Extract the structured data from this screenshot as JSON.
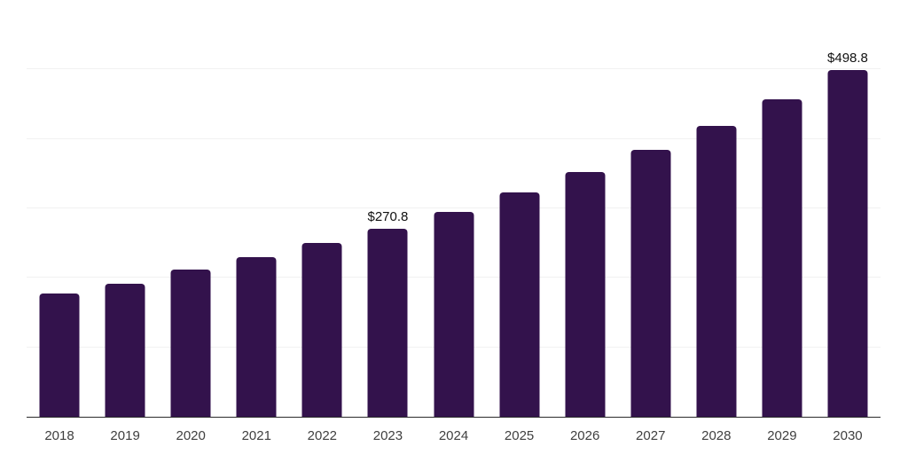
{
  "chart_data": {
    "type": "bar",
    "title": "",
    "xlabel": "",
    "ylabel": "",
    "categories": [
      "2018",
      "2019",
      "2020",
      "2021",
      "2022",
      "2023",
      "2024",
      "2025",
      "2026",
      "2027",
      "2028",
      "2029",
      "2030"
    ],
    "values": [
      177.6,
      191.7,
      211.4,
      229.3,
      250.2,
      270.8,
      295.5,
      322.5,
      351.9,
      384.0,
      419.0,
      457.2,
      498.8
    ],
    "data_labels": [
      "",
      "",
      "",
      "",
      "",
      "$270.8",
      "",
      "",
      "",
      "",
      "",
      "",
      "$498.8"
    ],
    "ylim": [
      0,
      600
    ],
    "grid_step": 100,
    "grid": "horizontal",
    "y_axis_tick_labels": "none",
    "legend": "none",
    "colors": {
      "background": "#ffffff",
      "bar": "#33124c",
      "grid": "#f1f1f1",
      "axis": "#2b2b2b",
      "tick_label": "#3f3f3f",
      "data_label": "#111111"
    }
  }
}
